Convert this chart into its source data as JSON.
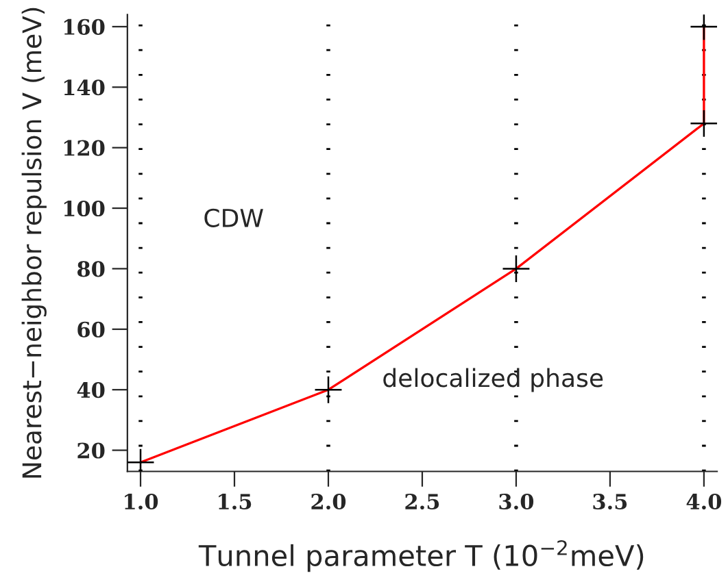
{
  "chart_data": {
    "type": "line",
    "xlabel": "Tunnel parameter T (10$^{−2}$meV)",
    "ylabel": "Nearest−neighbor repulsion V (meV)",
    "x": [
      1,
      2,
      3,
      4,
      4
    ],
    "series": [
      {
        "color": "#ff0000",
        "values": [
          16,
          40,
          80,
          128,
          160
        ]
      }
    ],
    "marker": "cross",
    "xlim": [
      0.93,
      4.07
    ],
    "xticks": [
      {
        "value": 1,
        "label": "1.0"
      },
      {
        "value": 1.5,
        "label": "1.5"
      },
      {
        "value": 2,
        "label": "2.0"
      },
      {
        "value": 2.5,
        "label": "2.5"
      },
      {
        "value": 3,
        "label": "3.0"
      },
      {
        "value": 3.5,
        "label": "3.5"
      },
      {
        "value": 4,
        "label": "4.0"
      }
    ],
    "ylim": [
      13,
      164
    ],
    "yticks": [
      20,
      40,
      60,
      80,
      100,
      120,
      140,
      160
    ],
    "ref_lines": [
      {
        "axis": "x",
        "value": 1,
        "line_style": "dotted",
        "color": "#000000"
      },
      {
        "axis": "x",
        "value": 2,
        "line_style": "dotted",
        "color": "#000000"
      },
      {
        "axis": "x",
        "value": 3,
        "line_style": "dotted",
        "color": "#000000"
      },
      {
        "axis": "x",
        "value": 4,
        "line_style": "dotted",
        "color": "#000000"
      }
    ],
    "annotations": [
      "CDW",
      "delocalized phase"
    ],
    "grid": false
  }
}
